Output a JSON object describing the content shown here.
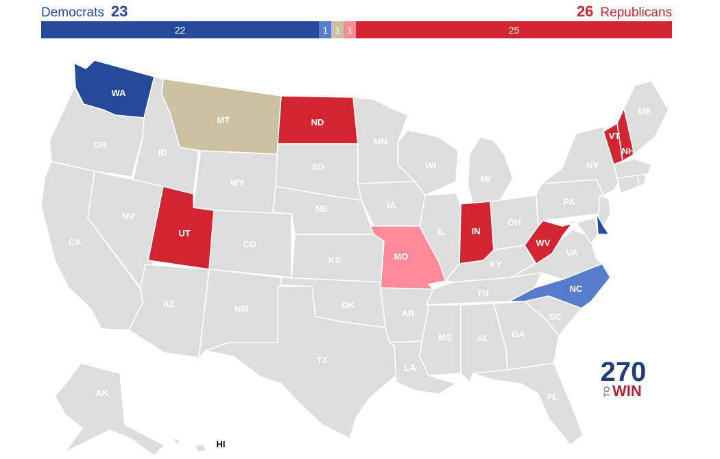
{
  "header": {
    "dem_label": "Democrats",
    "dem_count": "23",
    "rep_count": "26",
    "rep_label": "Republicans"
  },
  "bar": [
    {
      "label": "22",
      "value": 22,
      "color": "#244999"
    },
    {
      "label": "1",
      "value": 1,
      "color": "#577ccc"
    },
    {
      "label": "1",
      "value": 1,
      "color": "#c9c19f"
    },
    {
      "label": "1",
      "value": 1,
      "color": "#ff8b98"
    },
    {
      "label": "25",
      "value": 25,
      "color": "#d22532"
    }
  ],
  "colors": {
    "solid_dem": "#244999",
    "likely_dem": "#577ccc",
    "tossup": "#c9c19f",
    "likely_rep": "#ff8b98",
    "solid_rep": "#d22532",
    "no_race": "#dddddd"
  },
  "states": {
    "WA": "WA",
    "OR": "OR",
    "CA": "CA",
    "ID": "ID",
    "NV": "NV",
    "MT": "MT",
    "WY": "WY",
    "UT": "UT",
    "AZ": "AZ",
    "CO": "CO",
    "NM": "NM",
    "ND": "ND",
    "SD": "SD",
    "NE": "NE",
    "KS": "KS",
    "OK": "OK",
    "TX": "TX",
    "MN": "MN",
    "IA": "IA",
    "MO": "MO",
    "AR": "AR",
    "LA": "LA",
    "WI": "WI",
    "IL": "IL",
    "MS": "MS",
    "MI": "MI",
    "IN": "IN",
    "OH": "OH",
    "KY": "KY",
    "TN": "TN",
    "AL": "AL",
    "GA": "GA",
    "FL": "FL",
    "SC": "SC",
    "NC": "NC",
    "VA": "VA",
    "WV": "WV",
    "PA": "PA",
    "NY": "NY",
    "VT": "VT",
    "NH": "NH",
    "ME": "ME",
    "AK": "AK",
    "HI": "HI"
  },
  "logo": {
    "top": "270",
    "to": "TO",
    "win": "WIN"
  }
}
